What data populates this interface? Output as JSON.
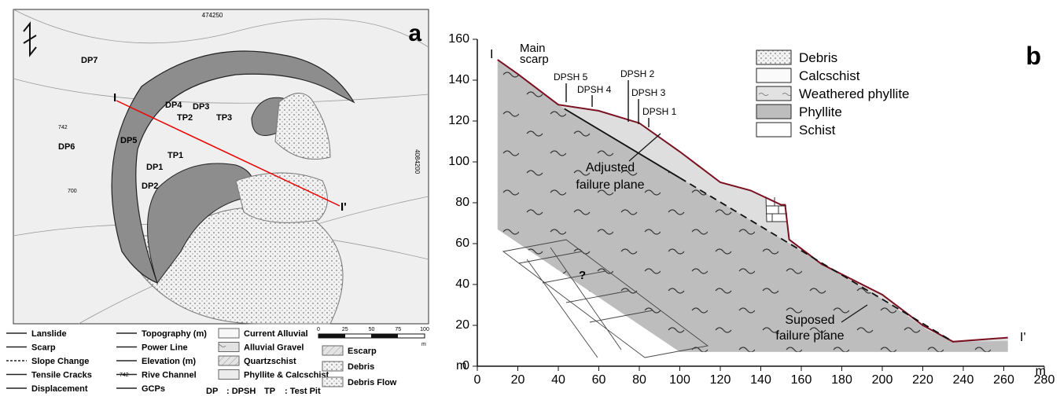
{
  "panel_a": {
    "label": "a",
    "coordinates": [
      "474250",
      "4084200"
    ],
    "elevations": [
      "742",
      "700"
    ],
    "points": [
      "DP7",
      "DP4",
      "DP3",
      "TP2",
      "TP3",
      "DP5",
      "TP1",
      "DP1",
      "DP2",
      "DP6"
    ],
    "section_labels": [
      "I",
      "I'"
    ],
    "scale": {
      "ticks": [
        "0",
        "25",
        "50",
        "75",
        "100"
      ],
      "unit": "m"
    },
    "legend": {
      "col1": [
        "Lanslide",
        "Scarp",
        "Slope Change",
        "Tensile Cracks",
        "Displacement"
      ],
      "col2": [
        "Topography (m)",
        "Power Line",
        "Elevation (m)",
        "Rive Channel",
        "GCPs"
      ],
      "elevation_symbol": "742",
      "col3": [
        "Current Alluvial",
        "Alluvial Gravel",
        "Quartzschist",
        "Phyllite & Calcschist"
      ],
      "col4": [
        "Escarp",
        "Debris",
        "Debris Flow"
      ],
      "dp": "DP",
      "dp_text": ": DPSH",
      "tp": "TP",
      "tp_text": ": Test Pit"
    }
  },
  "panel_b": {
    "label": "b",
    "section_labels": [
      "I",
      "I'"
    ],
    "main_scarp": [
      "Main",
      "scarp"
    ],
    "dpsh": [
      "DPSH 5",
      "DPSH 4",
      "DPSH 2",
      "DPSH 3",
      "DPSH 1"
    ],
    "adjusted": [
      "Adjusted",
      "failure plane"
    ],
    "supposed": [
      "Suposed",
      "failure plane"
    ],
    "unknown": "?",
    "legend": [
      "Debris",
      "Calcschist",
      "Weathered phyllite",
      "Phyllite",
      "Schist"
    ],
    "x_ticks": [
      0,
      20,
      40,
      60,
      80,
      100,
      120,
      140,
      160,
      180,
      200,
      220,
      240,
      260,
      280
    ],
    "y_ticks": [
      0,
      20,
      40,
      60,
      80,
      100,
      120,
      140,
      160
    ],
    "x_unit": "m",
    "y_unit": "m"
  }
}
